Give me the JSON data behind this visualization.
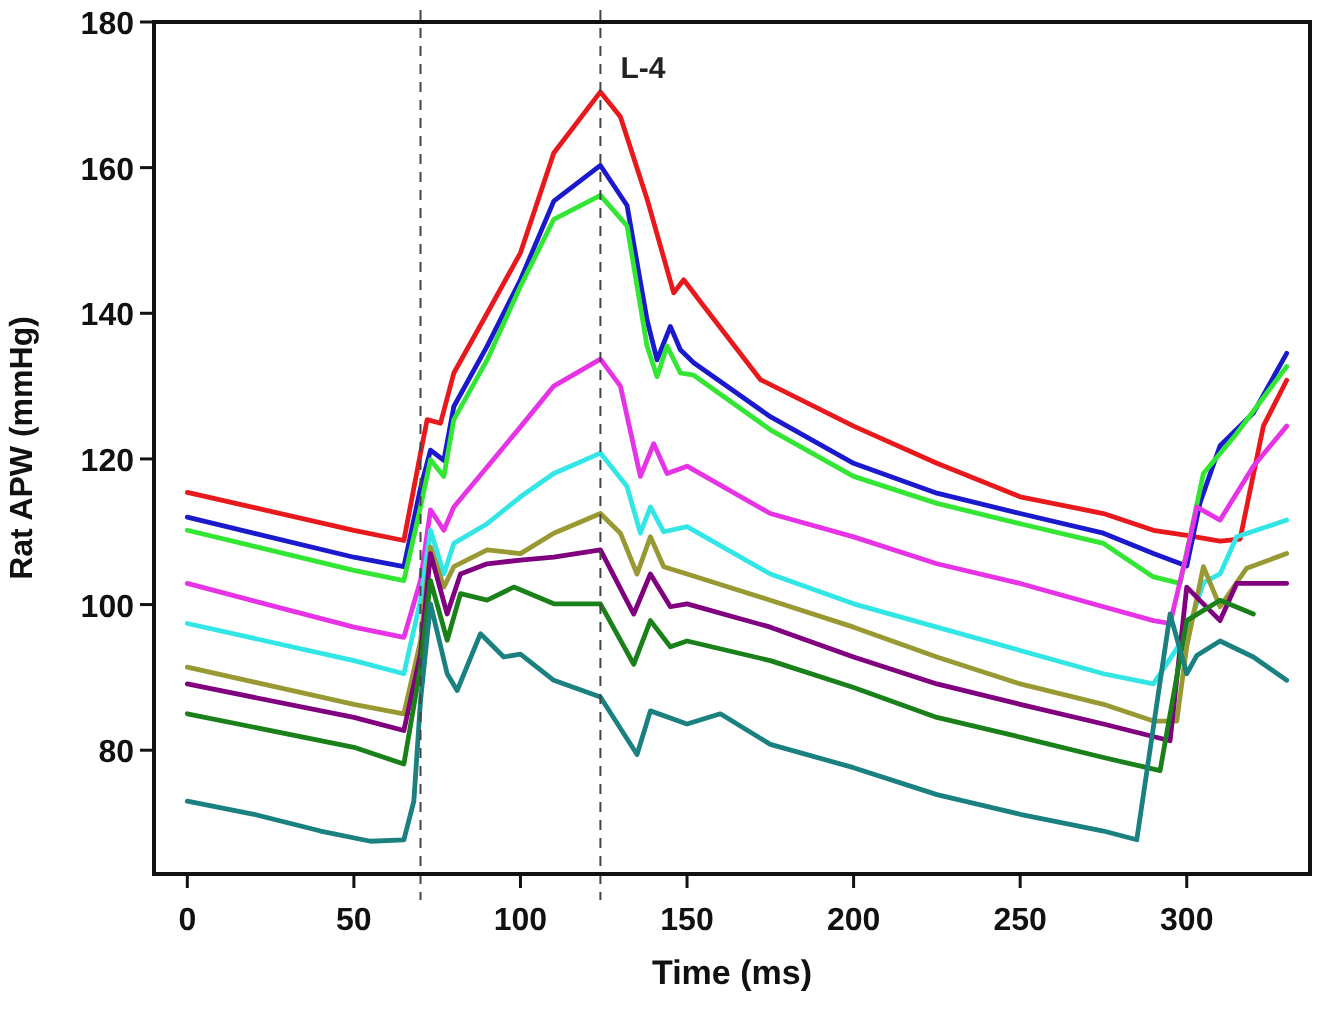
{
  "chart_data": {
    "type": "line",
    "xlabel": "Time (ms)",
    "ylabel": "Rat APW (mmHg)",
    "xlim": [
      -10,
      337
    ],
    "ylim": [
      63,
      180
    ],
    "xticks": [
      0,
      50,
      100,
      150,
      200,
      250,
      300
    ],
    "yticks": [
      80,
      100,
      120,
      140,
      160,
      180
    ],
    "grid": false,
    "marker": "none",
    "line_style": "solid",
    "ref_lines": [
      {
        "axis": "x",
        "value": 70,
        "label": null,
        "color": "#444444",
        "line_style": "dashed"
      },
      {
        "axis": "x",
        "value": 124,
        "label": "L-4",
        "color": "#444444",
        "line_style": "dashed"
      }
    ],
    "series": [
      {
        "color": "#e8191c",
        "x": [
          0,
          50,
          65,
          70,
          72,
          76,
          80,
          90,
          100,
          110,
          124,
          130,
          138,
          146,
          149,
          155,
          172,
          200,
          225,
          250,
          275,
          290,
          300,
          310,
          316,
          323,
          330
        ],
        "values": [
          115.4,
          110.2,
          108.8,
          120.8,
          125.4,
          124.9,
          131.8,
          140,
          148.3,
          162,
          170.4,
          167,
          155.7,
          142.8,
          144.6,
          141,
          130.9,
          124.5,
          119.4,
          114.8,
          112.5,
          110.2,
          109.5,
          108.7,
          109,
          124.5,
          130.8
        ]
      },
      {
        "color": "#1a1acc",
        "x": [
          0,
          50,
          65,
          70,
          73,
          77,
          80,
          90,
          100,
          110,
          124,
          132,
          138,
          141,
          145,
          148,
          152,
          175,
          200,
          225,
          250,
          275,
          290,
          300,
          304,
          310,
          320,
          330
        ],
        "values": [
          112,
          106.5,
          105.2,
          116,
          121.2,
          119.8,
          127.2,
          135.5,
          144.6,
          155.4,
          160.3,
          154.8,
          139.1,
          133.6,
          138.2,
          135,
          133.2,
          125.8,
          119.4,
          115.3,
          112.5,
          109.8,
          107,
          105.3,
          114,
          121.8,
          126.3,
          134.5
        ]
      },
      {
        "color": "#33e633",
        "x": [
          0,
          50,
          65,
          70,
          73,
          77,
          80,
          90,
          100,
          110,
          124,
          132,
          138,
          141,
          144,
          148,
          152,
          175,
          200,
          225,
          250,
          275,
          290,
          298,
          305,
          315,
          330
        ],
        "values": [
          110.2,
          104.7,
          103.3,
          113.4,
          119.9,
          117.6,
          125.4,
          133.6,
          143.7,
          152.9,
          156.2,
          152,
          135.5,
          131.3,
          135.5,
          131.8,
          131.5,
          124,
          117.6,
          113.9,
          111.1,
          108.4,
          103.8,
          102.9,
          118,
          123.5,
          132.7
        ]
      },
      {
        "color": "#e633e6",
        "x": [
          0,
          50,
          65,
          70,
          73,
          77,
          80,
          90,
          100,
          110,
          124,
          130,
          136,
          140,
          144,
          150,
          175,
          200,
          225,
          250,
          275,
          290,
          295,
          300,
          303,
          310,
          320,
          330
        ],
        "values": [
          102.9,
          96.9,
          95.5,
          103.3,
          113,
          110.2,
          113.4,
          118.9,
          124.4,
          130,
          133.7,
          130,
          117.6,
          122.1,
          118,
          119,
          112.5,
          109.3,
          105.6,
          102.9,
          99.7,
          97.8,
          97.4,
          107,
          113.4,
          111.6,
          119,
          124.5
        ]
      },
      {
        "color": "#33e6e6",
        "x": [
          0,
          50,
          65,
          70,
          73,
          77,
          80,
          90,
          100,
          110,
          124,
          132,
          136,
          139,
          143,
          150,
          175,
          200,
          225,
          250,
          275,
          290,
          300,
          305,
          310,
          315,
          330
        ],
        "values": [
          97.4,
          92.3,
          90.5,
          100.6,
          110.2,
          104.2,
          108.4,
          111.1,
          114.8,
          118,
          120.8,
          116.2,
          109.8,
          113.4,
          110,
          110.7,
          104.2,
          100.1,
          96.9,
          93.7,
          90.5,
          89.1,
          96,
          103,
          104.2,
          109.3,
          111.6
        ]
      },
      {
        "color": "#999933",
        "x": [
          0,
          50,
          65,
          70,
          73,
          77,
          80,
          90,
          100,
          110,
          124,
          130,
          135,
          139,
          143,
          150,
          175,
          200,
          225,
          250,
          275,
          290,
          297,
          300,
          305,
          310,
          318,
          330
        ],
        "values": [
          91.4,
          86.3,
          85,
          95,
          107.9,
          102.4,
          105.2,
          107.5,
          107,
          109.8,
          112.5,
          109.8,
          104.2,
          109.3,
          105.2,
          104.2,
          100.6,
          96.9,
          92.8,
          89.1,
          86.3,
          84,
          84,
          94.2,
          105.2,
          99.7,
          105,
          107
        ]
      },
      {
        "color": "#800080",
        "x": [
          0,
          50,
          65,
          70,
          73,
          78,
          82,
          90,
          100,
          110,
          124,
          134,
          139,
          145,
          150,
          175,
          200,
          225,
          250,
          275,
          295,
          300,
          310,
          315,
          330
        ],
        "values": [
          89.1,
          84.5,
          82.7,
          93.2,
          107,
          98.7,
          104.2,
          105.6,
          106.1,
          106.5,
          107.5,
          98.7,
          104.2,
          99.7,
          100.1,
          96.9,
          92.8,
          89.1,
          86.3,
          83.6,
          81.3,
          102.4,
          97.8,
          102.9,
          102.9
        ]
      },
      {
        "color": "#1a801a",
        "x": [
          0,
          50,
          65,
          70,
          73,
          78,
          82,
          90,
          98,
          110,
          124,
          134,
          139,
          145,
          150,
          175,
          200,
          225,
          250,
          275,
          292,
          300,
          310,
          320
        ],
        "values": [
          85,
          80.4,
          78.1,
          91.4,
          103.3,
          95.1,
          101.5,
          100.6,
          102.4,
          100.1,
          100.1,
          91.8,
          97.8,
          94.2,
          95,
          92.3,
          88.6,
          84.5,
          81.8,
          79,
          77.2,
          97.8,
          100.6,
          98.7
        ]
      },
      {
        "color": "#1a8080",
        "x": [
          0,
          20,
          40,
          55,
          65,
          68,
          70,
          73,
          78,
          81,
          88,
          95,
          100,
          110,
          124,
          135,
          139,
          150,
          160,
          175,
          200,
          225,
          250,
          275,
          285,
          295,
          300,
          303,
          310,
          320,
          330
        ],
        "values": [
          73,
          71.2,
          68.9,
          67.5,
          67.7,
          73,
          86.8,
          100.1,
          90.5,
          88.2,
          96,
          92.8,
          93.2,
          89.6,
          87.3,
          79.4,
          85.4,
          83.6,
          85,
          80.8,
          77.6,
          73.9,
          71.2,
          68.9,
          67.7,
          98.7,
          90.5,
          93,
          95,
          92.8,
          89.6
        ]
      }
    ]
  }
}
